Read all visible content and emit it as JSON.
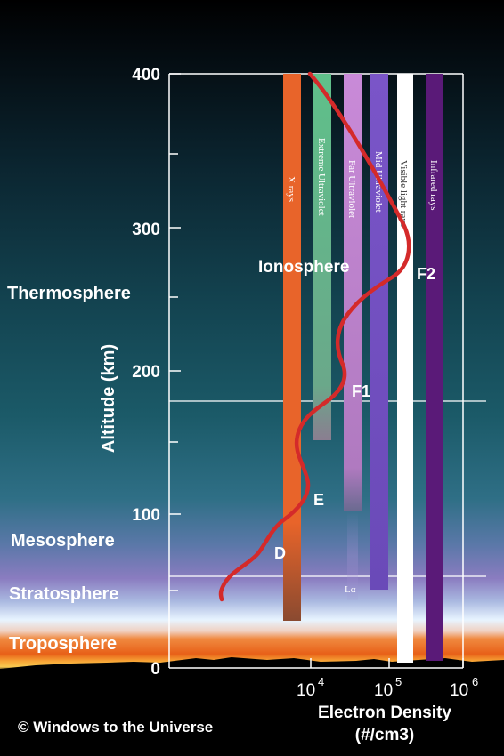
{
  "layers": [
    {
      "name": "Thermosphere"
    },
    {
      "name": "Mesosphere"
    },
    {
      "name": "Stratosphere"
    },
    {
      "name": "Troposphere"
    }
  ],
  "axis": {
    "y_label": "Altitude (km)",
    "y_ticks": [
      "0",
      "100",
      "200",
      "300",
      "400"
    ],
    "x_label": "Electron Density",
    "x_unit": "(#/cm3)",
    "x_ticks": [
      {
        "base": "10",
        "exp": "4"
      },
      {
        "base": "10",
        "exp": "5"
      },
      {
        "base": "10",
        "exp": "6"
      }
    ]
  },
  "bands": [
    {
      "label": "X rays",
      "color": "#e8642a"
    },
    {
      "label": "Extreme Ultraviolet",
      "color": "#5fc08a"
    },
    {
      "label": "Far Ultraviolet",
      "color": "#c98ad8"
    },
    {
      "label": "Mid Ultraviolet",
      "color": "#7a55c8"
    },
    {
      "label": "Visible light rays",
      "color": "#ffffff"
    },
    {
      "label": "Infrared rays",
      "color": "#5a1a78"
    }
  ],
  "region_labels": {
    "ionosphere": "Ionosphere",
    "f2": "F2",
    "f1": "F1",
    "e": "E",
    "d": "D",
    "lyman": "Lα"
  },
  "curve_color": "#d42a2a",
  "credit": "© Windows to the Universe"
}
